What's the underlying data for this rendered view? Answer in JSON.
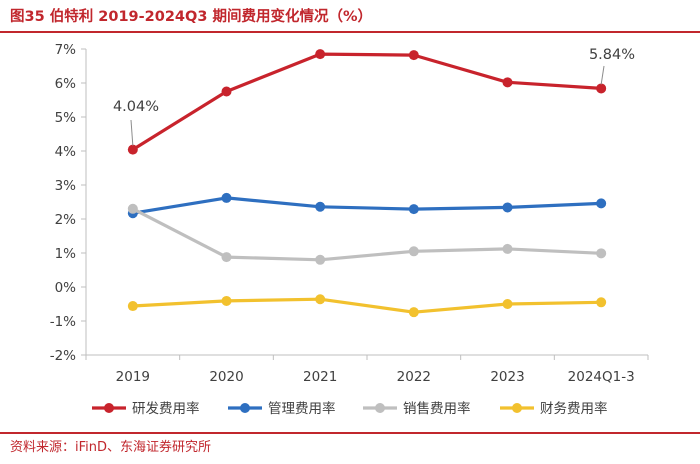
{
  "header": {
    "title": "图35  伯特利 2019-2024Q3 期间费用变化情况（%）"
  },
  "footer": {
    "source": "资料来源：iFinD、东海证券研究所"
  },
  "chart_data": {
    "type": "line",
    "title": "伯特利 2019-2024Q3 期间费用变化情况（%）",
    "categories": [
      "2019",
      "2020",
      "2021",
      "2022",
      "2023",
      "2024Q1-3"
    ],
    "ylim": [
      -2,
      7
    ],
    "yticks": [
      -2,
      -1,
      0,
      1,
      2,
      3,
      4,
      5,
      6,
      7
    ],
    "ytick_labels": [
      "-2%",
      "-1%",
      "0%",
      "1%",
      "2%",
      "3%",
      "4%",
      "5%",
      "6%",
      "7%"
    ],
    "grid": false,
    "legend_position": "bottom",
    "series": [
      {
        "name": "研发费用率",
        "color": "#c8232c",
        "values": [
          4.04,
          5.75,
          6.85,
          6.82,
          6.02,
          5.84
        ]
      },
      {
        "name": "管理费用率",
        "color": "#2e6fc0",
        "values": [
          2.17,
          2.62,
          2.36,
          2.29,
          2.34,
          2.46
        ]
      },
      {
        "name": "销售费用率",
        "color": "#bfbfbf",
        "values": [
          2.3,
          0.88,
          0.8,
          1.05,
          1.12,
          0.99
        ]
      },
      {
        "name": "财务费用率",
        "color": "#f2c12e",
        "values": [
          -0.56,
          -0.41,
          -0.36,
          -0.74,
          -0.5,
          -0.45
        ]
      }
    ],
    "annotations": [
      {
        "text": "4.04%",
        "series": 0,
        "index": 0
      },
      {
        "text": "5.84%",
        "series": 0,
        "index": 5
      }
    ]
  }
}
